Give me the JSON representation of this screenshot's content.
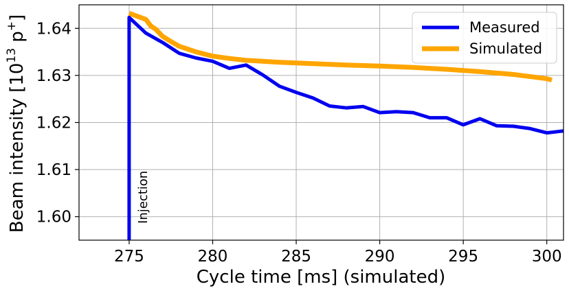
{
  "chart_data": {
    "type": "line",
    "xlabel": "Cycle time [ms] (simulated)",
    "ylabel": "Beam intensity [10",
    "ylabel_exp": "13",
    "ylabel_unit": " p",
    "ylabel_unit_sup": "+",
    "ylabel_close": "]",
    "xlim": [
      272.0,
      301.0
    ],
    "ylim": [
      1.595,
      1.645
    ],
    "xticks": [
      275,
      280,
      285,
      290,
      295,
      300
    ],
    "yticks": [
      1.6,
      1.61,
      1.62,
      1.63,
      1.64
    ],
    "xtick_labels": [
      "275",
      "280",
      "285",
      "290",
      "295",
      "300"
    ],
    "ytick_labels": [
      "1.60",
      "1.61",
      "1.62",
      "1.63",
      "1.64"
    ],
    "grid": true,
    "legend": "top-right",
    "annotation": {
      "text": "Injection",
      "x": 275.5,
      "y": 1.5985
    },
    "series": [
      {
        "name": "Measured",
        "color": "#0000ee",
        "x": [
          275.0,
          275.0,
          276.0,
          277.0,
          278.0,
          279.0,
          280.0,
          281.0,
          282.0,
          283.0,
          284.0,
          285.0,
          286.0,
          287.0,
          288.0,
          289.0,
          290.0,
          291.0,
          292.0,
          293.0,
          294.0,
          295.0,
          296.0,
          297.0,
          298.0,
          299.0,
          300.0,
          301.0
        ],
        "y": [
          1.595,
          1.6423,
          1.639,
          1.637,
          1.6347,
          1.6337,
          1.633,
          1.6315,
          1.6322,
          1.6301,
          1.6277,
          1.6264,
          1.6252,
          1.6235,
          1.6231,
          1.6234,
          1.6221,
          1.6223,
          1.6221,
          1.621,
          1.621,
          1.6195,
          1.6208,
          1.6193,
          1.6192,
          1.6187,
          1.6178,
          1.6182
        ]
      },
      {
        "name": "Simulated",
        "color": "#ffa500",
        "x": [
          275.0,
          276.0,
          276.3,
          276.6,
          277.0,
          277.5,
          278.0,
          279.0,
          280.0,
          281.0,
          282.0,
          284.0,
          286.0,
          288.0,
          290.0,
          292.0,
          294.0,
          296.0,
          298.0,
          300.0,
          300.3
        ],
        "y": [
          1.6432,
          1.6419,
          1.6405,
          1.6398,
          1.6383,
          1.6372,
          1.6362,
          1.635,
          1.6341,
          1.6336,
          1.6332,
          1.6328,
          1.6325,
          1.6322,
          1.632,
          1.6317,
          1.6313,
          1.6308,
          1.6302,
          1.6293,
          1.629
        ]
      }
    ]
  }
}
